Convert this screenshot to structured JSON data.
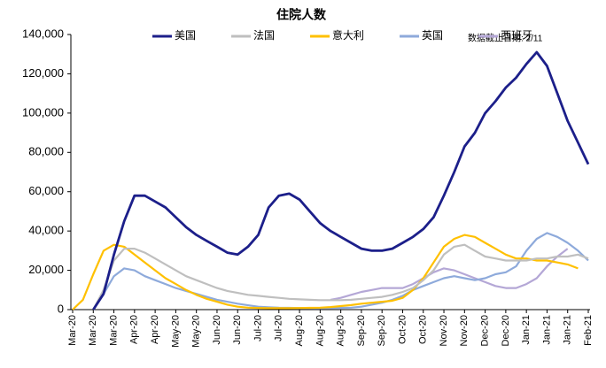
{
  "chart_data": {
    "type": "line",
    "title": "住院人数",
    "annotation": "数据截止日期: 2/11",
    "categories": [
      "Mar-20",
      null,
      "Mar-20",
      null,
      "Mar-20",
      null,
      "Apr-20",
      null,
      "Apr-20",
      null,
      "May-20",
      null,
      "May-20",
      null,
      "Jun-20",
      null,
      "Jun-20",
      null,
      "Jul-20",
      null,
      "Jul-20",
      null,
      "Aug-20",
      null,
      "Aug-20",
      null,
      "Aug-20",
      null,
      "Sep-20",
      null,
      "Sep-20",
      null,
      "Oct-20",
      null,
      "Oct-20",
      null,
      "Nov-20",
      null,
      "Nov-20",
      null,
      "Dec-20",
      null,
      "Dec-20",
      null,
      "Jan-21",
      null,
      "Jan-21",
      null,
      "Jan-21",
      null,
      "Feb-21"
    ],
    "series": [
      {
        "name": "美国",
        "color": "#1c1f8a",
        "values": [
          null,
          null,
          0,
          8000,
          28000,
          45000,
          58000,
          58000,
          55000,
          52000,
          47000,
          42000,
          38000,
          35000,
          32000,
          29000,
          28000,
          32000,
          38000,
          52000,
          58000,
          59000,
          56000,
          50000,
          44000,
          40000,
          37000,
          34000,
          31000,
          30000,
          30000,
          31000,
          34000,
          37000,
          41000,
          47000,
          58000,
          70000,
          83000,
          90000,
          100000,
          106000,
          113000,
          118000,
          125000,
          131000,
          124000,
          110000,
          96000,
          85000,
          74000
        ]
      },
      {
        "name": "法国",
        "color": "#bfbfbf",
        "values": [
          null,
          null,
          0,
          10000,
          25000,
          31000,
          31000,
          29000,
          26000,
          23000,
          20000,
          17000,
          15000,
          13000,
          11000,
          9500,
          8500,
          7500,
          7000,
          6500,
          6000,
          5500,
          5200,
          5000,
          4800,
          4800,
          4800,
          5000,
          5500,
          6000,
          6500,
          7500,
          9000,
          11000,
          15000,
          20000,
          28000,
          32000,
          33000,
          30000,
          27000,
          26000,
          25000,
          25000,
          25000,
          26000,
          26000,
          27000,
          27000,
          28000,
          26000
        ]
      },
      {
        "name": "意大利",
        "color": "#ffc000",
        "values": [
          0,
          5000,
          18000,
          30000,
          33000,
          32000,
          28000,
          24000,
          20000,
          16000,
          13000,
          10000,
          7500,
          5500,
          4000,
          2500,
          1500,
          1000,
          800,
          700,
          700,
          700,
          800,
          900,
          1000,
          1300,
          1800,
          2300,
          3000,
          3500,
          4000,
          4500,
          6000,
          10000,
          16000,
          24000,
          32000,
          36000,
          38000,
          37000,
          34000,
          31000,
          28000,
          26000,
          26000,
          25000,
          25000,
          24000,
          23000,
          21000,
          null
        ]
      },
      {
        "name": "英国",
        "color": "#8eaadb",
        "values": [
          null,
          null,
          0,
          8000,
          17000,
          21000,
          20000,
          17000,
          15000,
          13000,
          11000,
          9500,
          8000,
          6500,
          5000,
          4000,
          3000,
          2200,
          1500,
          1200,
          1000,
          900,
          800,
          800,
          800,
          800,
          900,
          1000,
          1500,
          2500,
          3500,
          5000,
          7000,
          10000,
          12000,
          14000,
          16000,
          17000,
          16000,
          15000,
          16000,
          18000,
          19000,
          22000,
          30000,
          36000,
          39000,
          37000,
          34000,
          30000,
          25000
        ]
      },
      {
        "name": "西班牙",
        "color": "#b4a7d6",
        "values": [
          null,
          null,
          null,
          null,
          null,
          null,
          null,
          null,
          null,
          null,
          null,
          null,
          null,
          null,
          null,
          null,
          null,
          null,
          null,
          null,
          null,
          null,
          null,
          null,
          null,
          5000,
          6000,
          7500,
          9000,
          10000,
          11000,
          11000,
          11000,
          13000,
          16000,
          19000,
          21000,
          20000,
          18000,
          16000,
          14000,
          12000,
          11000,
          11000,
          13000,
          16000,
          22000,
          27000,
          31000,
          null,
          null
        ]
      }
    ],
    "ylim": [
      0,
      140000
    ],
    "yticks": [
      0,
      {
        "value": 20000,
        "label": "20,000"
      },
      {
        "value": 40000,
        "label": "40,000"
      },
      {
        "value": 60000,
        "label": "60,000"
      },
      {
        "value": 80000,
        "label": "80,000"
      },
      {
        "value": 100000,
        "label": "100,000"
      },
      {
        "value": 120000,
        "label": "120,000"
      },
      {
        "value": 140000,
        "label": "140,000"
      }
    ]
  }
}
